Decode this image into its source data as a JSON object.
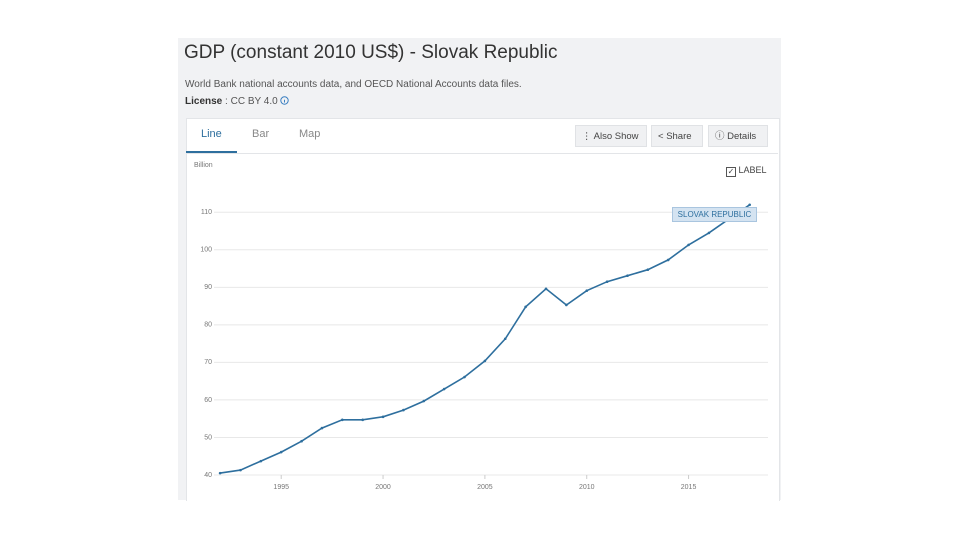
{
  "header": {
    "title": "GDP (constant 2010 US$) - Slovak Republic",
    "source": "World Bank national accounts data, and OECD National Accounts data files.",
    "license_label": "License",
    "license_sep": ":",
    "license": "CC BY 4.0"
  },
  "tabs": [
    "Line",
    "Bar",
    "Map"
  ],
  "buttons": [
    "Also Show",
    "Share",
    "Details"
  ],
  "legend_toggle": "LABEL",
  "chart_data": {
    "type": "line",
    "y_label": "Billion",
    "x": [
      1992,
      1993,
      1994,
      1995,
      1996,
      1997,
      1998,
      1999,
      2000,
      2001,
      2002,
      2003,
      2004,
      2005,
      2006,
      2007,
      2008,
      2009,
      2010,
      2011,
      2012,
      2013,
      2014,
      2015,
      2016,
      2017,
      2018
    ],
    "series": [
      {
        "name": "SLOVAK REPUBLIC",
        "color": "#2e6f9e",
        "values": [
          40.5,
          41.3,
          43.7,
          46.1,
          49,
          52.5,
          54.7,
          54.7,
          55.5,
          57.3,
          59.7,
          62.9,
          66.1,
          70.4,
          76.3,
          84.8,
          89.6,
          85.3,
          89.1,
          91.5,
          93.1,
          94.7,
          97.3,
          101.3,
          104.5,
          108.3,
          112
        ]
      }
    ],
    "xlim": [
      1991.7,
      2018.9
    ],
    "ylim": [
      40,
      117
    ],
    "xticks": [
      1995,
      2000,
      2005,
      2010,
      2015
    ],
    "yticks": [
      40,
      50,
      60,
      70,
      80,
      90,
      100,
      110
    ],
    "grid": true
  }
}
